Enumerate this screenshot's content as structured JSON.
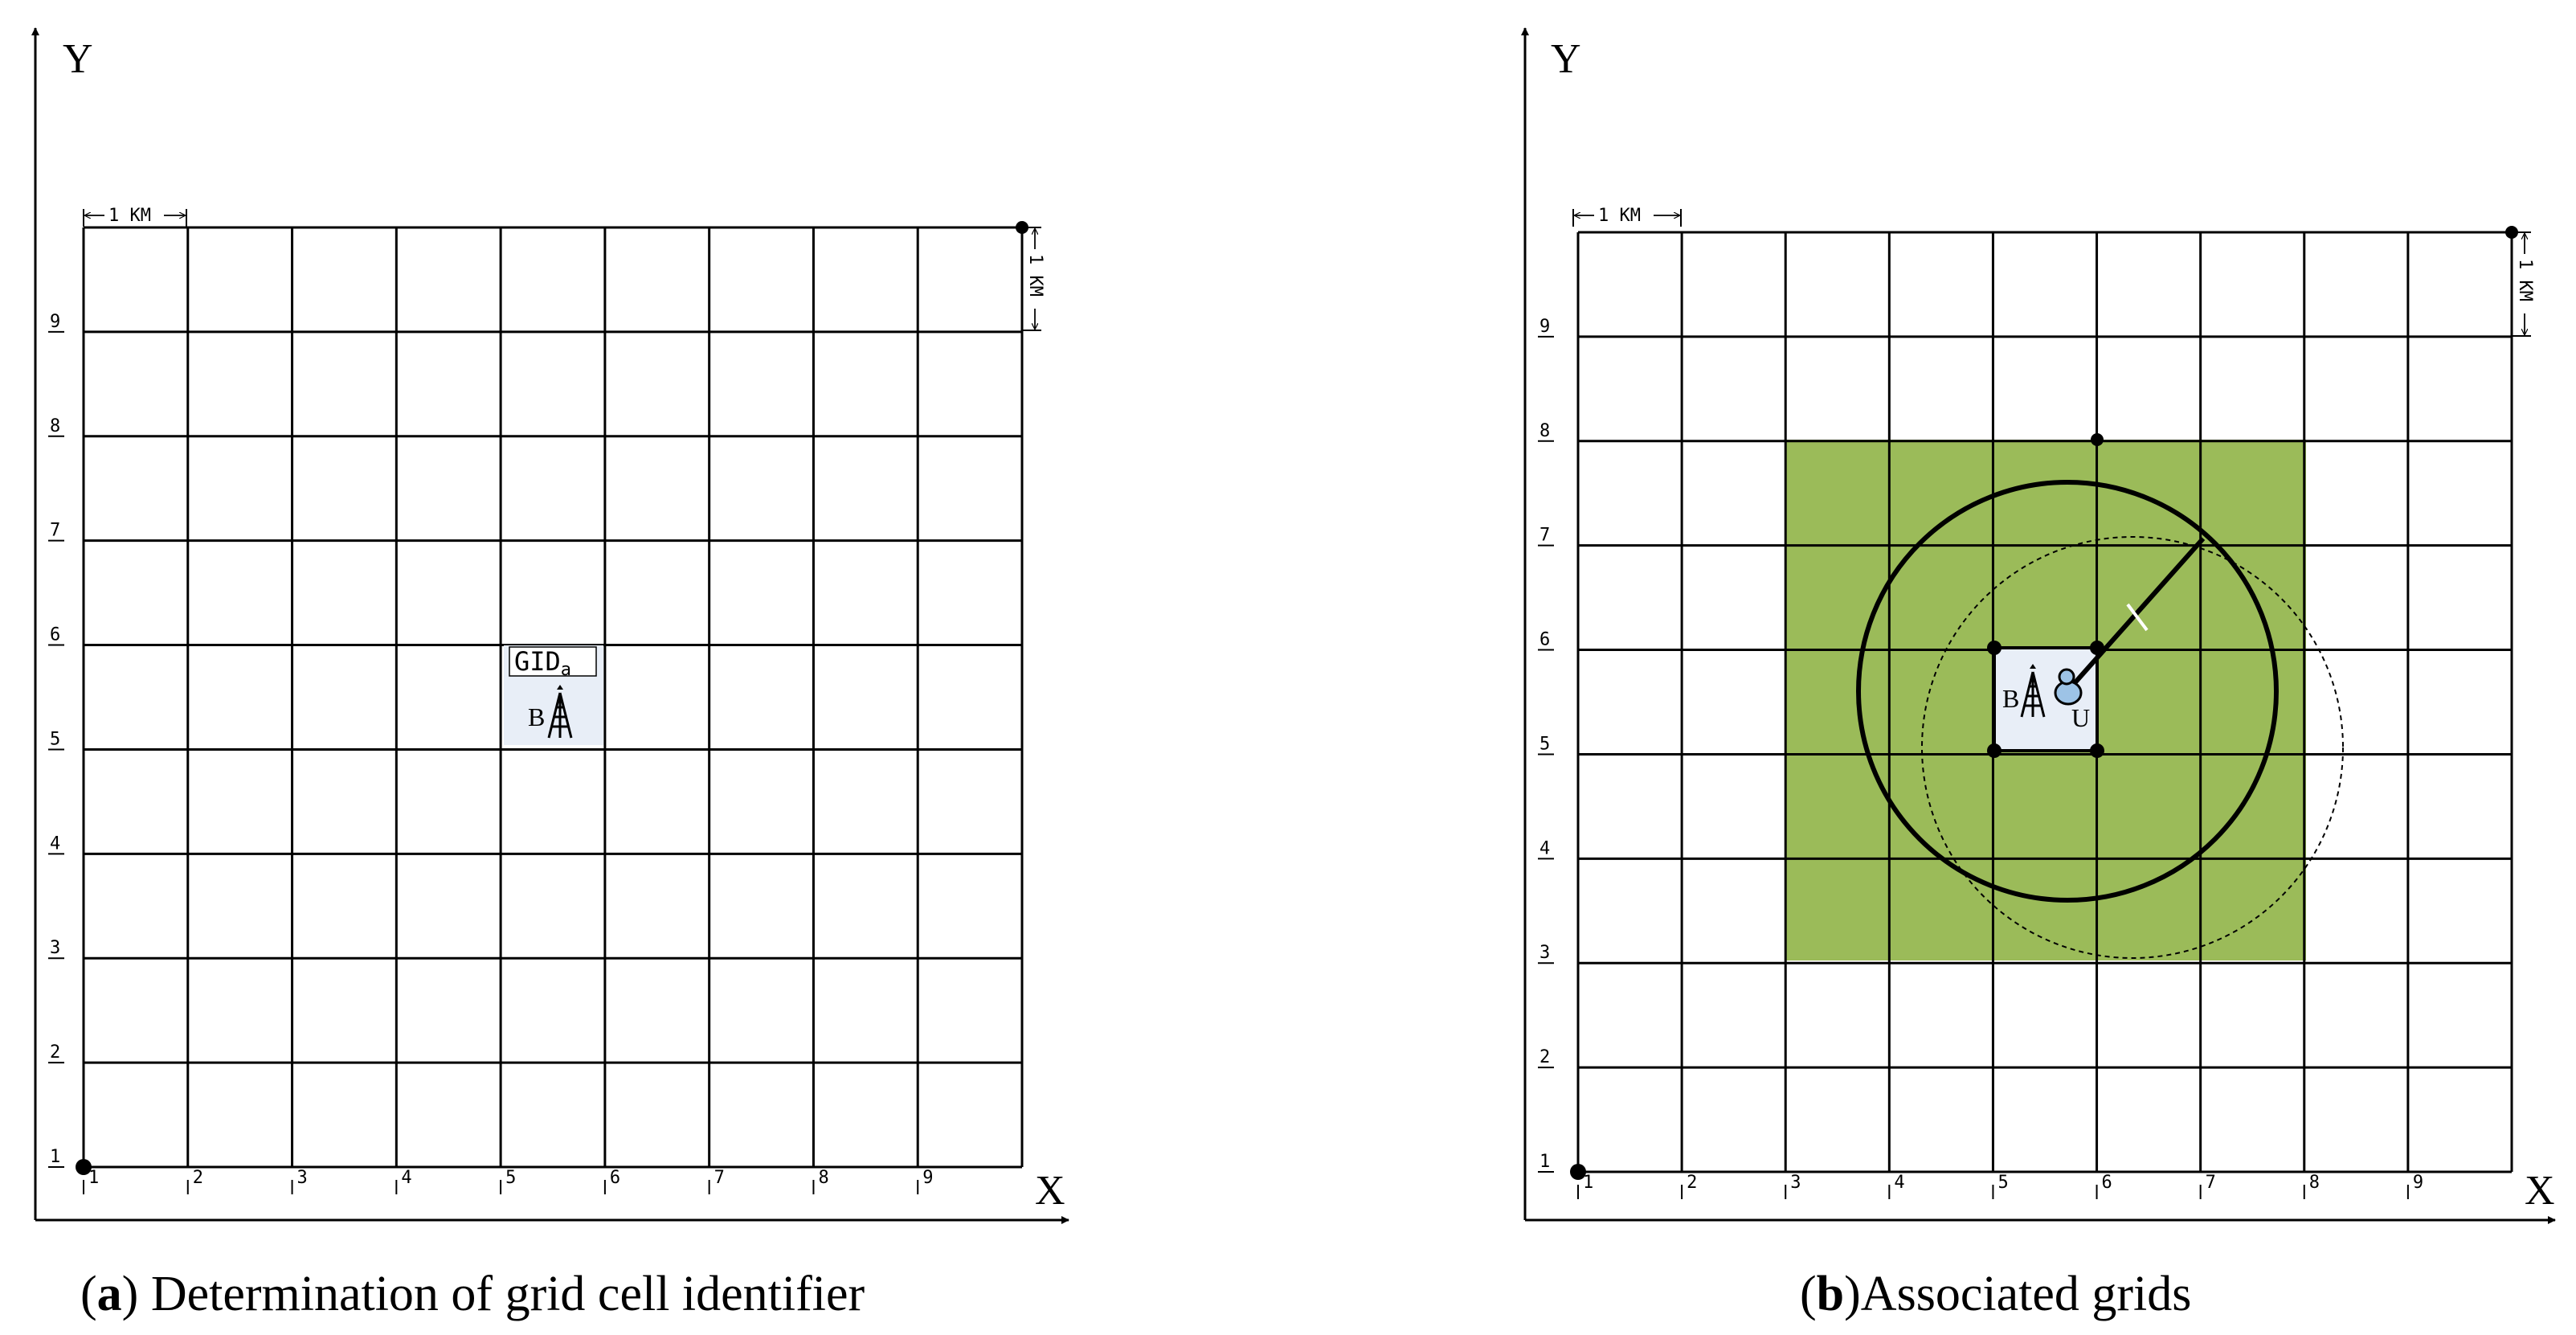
{
  "colors": {
    "line": "#000000",
    "associated_fill": "#9bbb59",
    "cell_highlight": "#e8eef7",
    "user_icon": "#9dc3e6"
  },
  "panels": [
    {
      "id": "a",
      "caption_letter": "a",
      "caption_open": "(",
      "caption_close": ")",
      "caption_text": " Determination of grid cell identifier",
      "y_axis_label": "Y",
      "x_axis_label": "X",
      "scale_top": "1 KM",
      "scale_right": "1 KM",
      "x_ticks": [
        "1",
        "2",
        "3",
        "4",
        "5",
        "6",
        "7",
        "8",
        "9"
      ],
      "y_ticks": [
        "1",
        "2",
        "3",
        "4",
        "5",
        "6",
        "7",
        "8",
        "9"
      ],
      "cell_label_main": "GID",
      "cell_label_sub": "a",
      "bs_label": "B",
      "bs_icon": "antenna-tower-icon"
    },
    {
      "id": "b",
      "caption_letter": "b",
      "caption_open": "(",
      "caption_close": ")",
      "caption_text": "Associated grids",
      "y_axis_label": "Y",
      "x_axis_label": "X",
      "scale_top": "1 KM",
      "scale_right": "1 KM",
      "x_ticks": [
        "1",
        "2",
        "3",
        "4",
        "5",
        "6",
        "7",
        "8",
        "9"
      ],
      "y_ticks": [
        "1",
        "2",
        "3",
        "4",
        "5",
        "6",
        "7",
        "8",
        "9"
      ],
      "bs_label": "B",
      "user_label": "U",
      "bs_icon": "antenna-tower-icon",
      "user_icon": "user-icon"
    }
  ]
}
